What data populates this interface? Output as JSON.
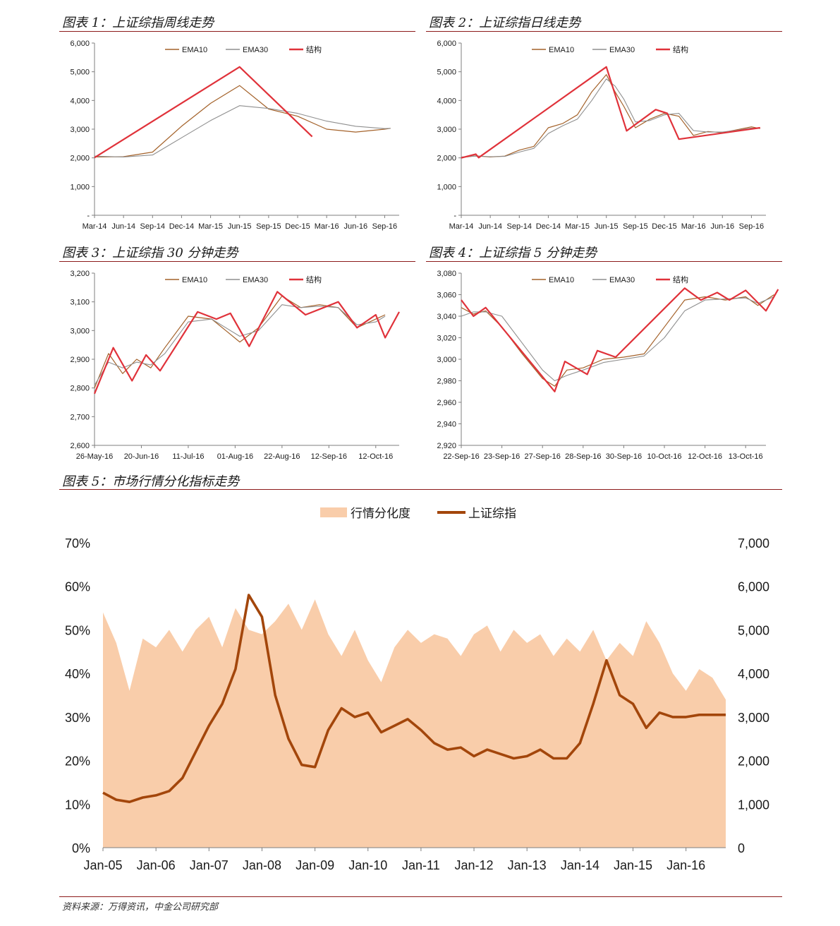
{
  "figures": [
    {
      "title": "图表 1：上证综指周线走势"
    },
    {
      "title": "图表 2：上证综指日线走势"
    },
    {
      "title": "图表 3：上证综指 30 分钟走势"
    },
    {
      "title": "图表 4：上证综指 5 分钟走势"
    },
    {
      "title": "图表 5：市场行情分化指标走势"
    }
  ],
  "source": "资料来源：万得资讯，中金公司研究部",
  "colors": {
    "ema10": "#a4622a",
    "ema30": "#8f8f8f",
    "structure": "#e0323a",
    "area": "#f9cdaa",
    "index_line": "#a3460b",
    "rule": "#8c1a1a"
  },
  "chart_data": [
    {
      "type": "line",
      "legend": [
        "EMA10",
        "EMA30",
        "结构"
      ],
      "categories": [
        "Mar-14",
        "Jun-14",
        "Sep-14",
        "Dec-14",
        "Mar-15",
        "Jun-15",
        "Sep-15",
        "Dec-15",
        "Mar-16",
        "Jun-16",
        "Sep-16"
      ],
      "yticks": [
        "-",
        "1,000",
        "2,000",
        "3,000",
        "4,000",
        "5,000",
        "6,000"
      ],
      "ylim": [
        0,
        6000
      ],
      "x": [
        0,
        1,
        2,
        3,
        4,
        5,
        6,
        7,
        8,
        9,
        10,
        10.2
      ],
      "series": [
        {
          "name": "EMA10",
          "values": [
            2030,
            2040,
            2200,
            3100,
            3900,
            4520,
            3700,
            3450,
            3000,
            2900,
            3000,
            3030
          ]
        },
        {
          "name": "EMA30",
          "values": [
            2060,
            2030,
            2100,
            2700,
            3300,
            3820,
            3720,
            3550,
            3280,
            3100,
            3020,
            3030
          ]
        },
        {
          "name": "结构",
          "x": [
            0,
            5,
            7.5
          ],
          "values": [
            2010,
            5170,
            2740
          ]
        }
      ]
    },
    {
      "type": "line",
      "legend": [
        "EMA10",
        "EMA30",
        "结构"
      ],
      "categories": [
        "Mar-14",
        "Jun-14",
        "Sep-14",
        "Dec-14",
        "Mar-15",
        "Jun-15",
        "Sep-15",
        "Dec-15",
        "Mar-16",
        "Jun-16",
        "Sep-16"
      ],
      "yticks": [
        "-",
        "1,000",
        "2,000",
        "3,000",
        "4,000",
        "5,000",
        "6,000"
      ],
      "ylim": [
        0,
        6000
      ],
      "x": [
        0,
        0.5,
        1,
        1.5,
        2,
        2.5,
        3,
        3.5,
        4,
        4.5,
        5,
        5.3,
        5.6,
        6,
        6.5,
        7,
        7.5,
        8,
        8.5,
        9,
        9.5,
        10,
        10.3
      ],
      "series": [
        {
          "name": "EMA10",
          "values": [
            2010,
            2070,
            2030,
            2060,
            2270,
            2400,
            3050,
            3200,
            3500,
            4300,
            4900,
            4300,
            3800,
            3050,
            3350,
            3550,
            3450,
            2780,
            2920,
            2880,
            2980,
            3080,
            3020
          ]
        },
        {
          "name": "EMA30",
          "values": [
            2030,
            2060,
            2040,
            2050,
            2200,
            2330,
            2850,
            3120,
            3350,
            4000,
            4750,
            4500,
            4050,
            3250,
            3300,
            3500,
            3550,
            2950,
            2900,
            2900,
            2960,
            3040,
            3030
          ]
        },
        {
          "name": "结构",
          "x": [
            0,
            0.5,
            0.6,
            5,
            5.7,
            6.7,
            7.1,
            7.5,
            10.3
          ],
          "values": [
            2000,
            2130,
            2010,
            5170,
            2940,
            3680,
            3550,
            2650,
            3050
          ]
        }
      ]
    },
    {
      "type": "line",
      "legend": [
        "EMA10",
        "EMA30",
        "结构"
      ],
      "categories": [
        "26-May-16",
        "20-Jun-16",
        "11-Jul-16",
        "01-Aug-16",
        "22-Aug-16",
        "12-Sep-16",
        "12-Oct-16"
      ],
      "yticks": [
        "2,600",
        "2,700",
        "2,800",
        "2,900",
        "3,000",
        "3,100",
        "3,200"
      ],
      "ylim": [
        2600,
        3200
      ],
      "x": [
        0,
        0.3,
        0.6,
        0.9,
        1.2,
        1.5,
        2,
        2.5,
        2.8,
        3.1,
        3.5,
        4,
        4.4,
        4.8,
        5.2,
        5.6,
        6,
        6.2
      ],
      "series": [
        {
          "name": "EMA10",
          "values": [
            2800,
            2920,
            2850,
            2900,
            2870,
            2940,
            3050,
            3040,
            3000,
            2960,
            3010,
            3120,
            3080,
            3090,
            3080,
            3010,
            3040,
            3055
          ]
        },
        {
          "name": "EMA30",
          "values": [
            2810,
            2890,
            2870,
            2890,
            2880,
            2920,
            3030,
            3040,
            3010,
            2980,
            3000,
            3090,
            3080,
            3085,
            3080,
            3020,
            3030,
            3050
          ]
        },
        {
          "name": "结构",
          "x": [
            0,
            0.4,
            0.8,
            1.1,
            1.4,
            2.2,
            2.6,
            2.9,
            3.3,
            3.9,
            4.5,
            5.2,
            5.6,
            6,
            6.2,
            6.5
          ],
          "values": [
            2780,
            2940,
            2825,
            2915,
            2860,
            3065,
            3040,
            3060,
            2945,
            3135,
            3055,
            3100,
            3010,
            3055,
            2975,
            3065
          ]
        }
      ]
    },
    {
      "type": "line",
      "legend": [
        "EMA10",
        "EMA30",
        "结构"
      ],
      "categories": [
        "22-Sep-16",
        "23-Sep-16",
        "27-Sep-16",
        "28-Sep-16",
        "30-Sep-16",
        "10-Oct-16",
        "12-Oct-16",
        "13-Oct-16"
      ],
      "yticks": [
        "2,920",
        "2,940",
        "2,960",
        "2,980",
        "3,000",
        "3,020",
        "3,040",
        "3,060",
        "3,080"
      ],
      "ylim": [
        2920,
        3080
      ],
      "x": [
        0,
        0.3,
        0.6,
        1,
        1.5,
        2,
        2.3,
        2.6,
        3,
        3.5,
        4,
        4.5,
        5,
        5.5,
        6,
        6.5,
        7,
        7.3,
        7.7
      ],
      "series": [
        {
          "name": "EMA10",
          "values": [
            3048,
            3042,
            3045,
            3030,
            3005,
            2982,
            2975,
            2990,
            2992,
            3000,
            3002,
            3005,
            3030,
            3055,
            3058,
            3055,
            3058,
            3050,
            3060
          ]
        },
        {
          "name": "EMA30",
          "values": [
            3040,
            3044,
            3044,
            3040,
            3015,
            2990,
            2980,
            2985,
            2990,
            2997,
            3000,
            3003,
            3020,
            3045,
            3055,
            3056,
            3057,
            3052,
            3058
          ]
        },
        {
          "name": "结构",
          "x": [
            0,
            0.3,
            0.6,
            2.3,
            2.55,
            3.1,
            3.35,
            3.8,
            5.5,
            5.9,
            6.3,
            6.6,
            7,
            7.5,
            7.8
          ],
          "values": [
            3055,
            3040,
            3048,
            2970,
            2998,
            2986,
            3008,
            3002,
            3066,
            3055,
            3062,
            3055,
            3064,
            3045,
            3065
          ]
        }
      ]
    },
    {
      "type": "area",
      "legend": [
        "行情分化度",
        "上证综指"
      ],
      "categories": [
        "Jan-05",
        "Jan-06",
        "Jan-07",
        "Jan-08",
        "Jan-09",
        "Jan-10",
        "Jan-11",
        "Jan-12",
        "Jan-13",
        "Jan-14",
        "Jan-15",
        "Jan-16"
      ],
      "yticks_left": [
        "0%",
        "10%",
        "20%",
        "30%",
        "40%",
        "50%",
        "60%",
        "70%"
      ],
      "yticks_right": [
        "0",
        "1,000",
        "2,000",
        "3,000",
        "4,000",
        "5,000",
        "6,000",
        "7,000"
      ],
      "ylim_left": [
        0,
        0.7
      ],
      "ylim_right": [
        0,
        7000
      ],
      "x": [
        0,
        0.25,
        0.5,
        0.75,
        1,
        1.25,
        1.5,
        1.75,
        2,
        2.25,
        2.5,
        2.75,
        3,
        3.25,
        3.5,
        3.75,
        4,
        4.25,
        4.5,
        4.75,
        5,
        5.25,
        5.5,
        5.75,
        6,
        6.25,
        6.5,
        6.75,
        7,
        7.25,
        7.5,
        7.75,
        8,
        8.25,
        8.5,
        8.75,
        9,
        9.25,
        9.5,
        9.75,
        10,
        10.25,
        10.5,
        10.75,
        11,
        11.25,
        11.5,
        11.75
      ],
      "series": [
        {
          "name": "行情分化度",
          "values": [
            0.54,
            0.47,
            0.36,
            0.48,
            0.46,
            0.5,
            0.45,
            0.5,
            0.53,
            0.46,
            0.55,
            0.5,
            0.49,
            0.52,
            0.56,
            0.5,
            0.57,
            0.49,
            0.44,
            0.5,
            0.43,
            0.38,
            0.46,
            0.5,
            0.47,
            0.49,
            0.48,
            0.44,
            0.49,
            0.51,
            0.45,
            0.5,
            0.47,
            0.49,
            0.44,
            0.48,
            0.45,
            0.5,
            0.43,
            0.47,
            0.44,
            0.52,
            0.47,
            0.4,
            0.36,
            0.41,
            0.39,
            0.34
          ]
        },
        {
          "name": "上证综指",
          "values": [
            1260,
            1100,
            1050,
            1150,
            1200,
            1300,
            1600,
            2200,
            2800,
            3300,
            4100,
            5800,
            5300,
            3500,
            2500,
            1900,
            1850,
            2700,
            3200,
            3000,
            3100,
            2650,
            2800,
            2950,
            2700,
            2400,
            2250,
            2300,
            2100,
            2250,
            2150,
            2050,
            2100,
            2250,
            2050,
            2050,
            2400,
            3300,
            4300,
            3500,
            3300,
            2750,
            3100,
            3000,
            3000,
            3050,
            3050,
            3050
          ]
        }
      ]
    }
  ]
}
